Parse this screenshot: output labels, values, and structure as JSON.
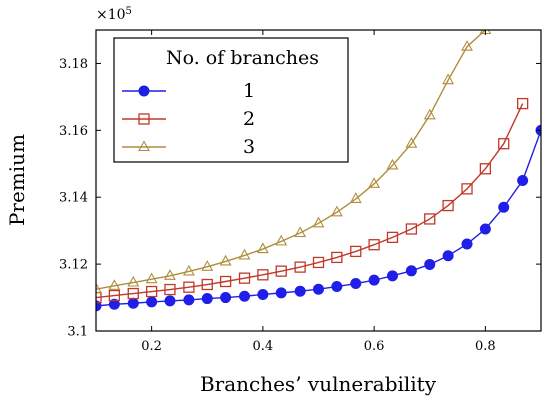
{
  "chart_data": {
    "type": "line",
    "xlabel": "Branches’ vulnerability",
    "ylabel": "Premium",
    "y_multiplier": "×10",
    "y_multiplier_exp": "5",
    "xlim": [
      0.1,
      0.9
    ],
    "ylim": [
      3.1,
      3.19
    ],
    "xticks": [
      0.2,
      0.4,
      0.6,
      0.8
    ],
    "xtick_labels": [
      "0.2",
      "0.4",
      "0.6",
      "0.8"
    ],
    "yticks": [
      3.1,
      3.12,
      3.14,
      3.16,
      3.18
    ],
    "ytick_labels": [
      "3.1",
      "3.12",
      "3.14",
      "3.16",
      "3.18"
    ],
    "grid": false,
    "legend_title": "No. of branches",
    "legend_position": "top-left",
    "series": [
      {
        "name": "1",
        "color": "#1f1fe8",
        "marker": "circle",
        "x": [
          0.1,
          0.133,
          0.167,
          0.2,
          0.233,
          0.267,
          0.3,
          0.333,
          0.367,
          0.4,
          0.433,
          0.467,
          0.5,
          0.533,
          0.567,
          0.6,
          0.633,
          0.667,
          0.7,
          0.733,
          0.767,
          0.8,
          0.833,
          0.867,
          0.9
        ],
        "y": [
          3.1075,
          3.108,
          3.1083,
          3.1087,
          3.109,
          3.1093,
          3.1097,
          3.11,
          3.1104,
          3.1109,
          3.1114,
          3.1119,
          3.1125,
          3.1133,
          3.1142,
          3.1152,
          3.1165,
          3.118,
          3.1199,
          3.1225,
          3.126,
          3.1305,
          3.137,
          3.145,
          3.16
        ]
      },
      {
        "name": "2",
        "color": "#c0392b",
        "marker": "square",
        "x": [
          0.1,
          0.133,
          0.167,
          0.2,
          0.233,
          0.267,
          0.3,
          0.333,
          0.367,
          0.4,
          0.433,
          0.467,
          0.5,
          0.533,
          0.567,
          0.6,
          0.633,
          0.667,
          0.7,
          0.733,
          0.767,
          0.8,
          0.833,
          0.867
        ],
        "y": [
          3.11,
          3.1106,
          3.1112,
          3.1118,
          3.1124,
          3.1131,
          3.1139,
          3.1148,
          3.1158,
          3.1168,
          3.1179,
          3.1191,
          3.1205,
          3.122,
          3.1238,
          3.1258,
          3.128,
          3.1305,
          3.1335,
          3.1375,
          3.1425,
          3.1485,
          3.156,
          3.168
        ]
      },
      {
        "name": "3",
        "color": "#b08d3c",
        "marker": "triangle",
        "x": [
          0.1,
          0.133,
          0.167,
          0.2,
          0.233,
          0.267,
          0.3,
          0.333,
          0.367,
          0.4,
          0.433,
          0.467,
          0.5,
          0.533,
          0.567,
          0.6,
          0.633,
          0.667,
          0.7,
          0.733,
          0.767,
          0.8
        ],
        "y": [
          3.1125,
          3.1135,
          3.1145,
          3.1155,
          3.1165,
          3.1178,
          3.1192,
          3.1208,
          3.1226,
          3.1245,
          3.1268,
          3.1293,
          3.1322,
          3.1355,
          3.1395,
          3.144,
          3.1495,
          3.156,
          3.1645,
          3.175,
          3.185,
          3.19
        ]
      }
    ]
  }
}
